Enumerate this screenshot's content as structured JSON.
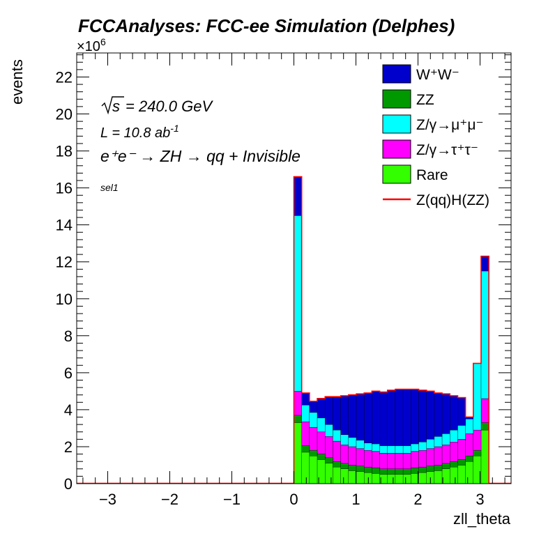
{
  "chart_data": {
    "type": "bar",
    "title": "FCCAnalyses: FCC-ee Simulation (Delphes)",
    "xlabel": "zll_theta",
    "ylabel": "events",
    "y_multiplier": "×10",
    "y_multiplier_exp": "6",
    "xlim": [
      -3.5,
      3.5
    ],
    "ylim": [
      0,
      23.3
    ],
    "x_ticks": [
      "−3",
      "−2",
      "−1",
      "0",
      "1",
      "2",
      "3"
    ],
    "y_ticks": [
      "0",
      "2",
      "4",
      "6",
      "8",
      "10",
      "12",
      "14",
      "16",
      "18",
      "20",
      "22"
    ],
    "stacked": true,
    "annotations": {
      "sqrt_s": "s",
      "energy": "= 240.0 GeV",
      "lumi": "L = 10.8 ab",
      "lumi_exp": "-1",
      "process": "e⁺e⁻ → ZH → qq + Invisible",
      "selection": "sel1"
    },
    "bins": {
      "lo": 0.0,
      "width": 0.1257,
      "count": 25
    },
    "series": [
      {
        "name": "Rare",
        "color": "#33ff00",
        "values": [
          3.3,
          1.7,
          1.5,
          1.3,
          1.1,
          0.9,
          0.8,
          0.7,
          0.65,
          0.6,
          0.55,
          0.5,
          0.5,
          0.5,
          0.5,
          0.55,
          0.6,
          0.65,
          0.7,
          0.8,
          0.9,
          1.0,
          1.2,
          1.5,
          2.9
        ]
      },
      {
        "name": "ZZ",
        "color": "#009900",
        "values": [
          0.4,
          0.35,
          0.3,
          0.3,
          0.3,
          0.3,
          0.3,
          0.3,
          0.3,
          0.3,
          0.3,
          0.3,
          0.3,
          0.3,
          0.3,
          0.3,
          0.3,
          0.3,
          0.3,
          0.3,
          0.3,
          0.3,
          0.3,
          0.3,
          0.4
        ]
      },
      {
        "name": "Z/γ→τ⁺τ⁻",
        "color": "#ff00ff",
        "values": [
          1.3,
          1.3,
          1.25,
          1.2,
          1.15,
          1.1,
          1.0,
          1.0,
          0.95,
          0.9,
          0.9,
          0.85,
          0.85,
          0.85,
          0.85,
          0.9,
          0.9,
          0.95,
          1.0,
          1.0,
          1.05,
          1.1,
          1.2,
          1.1,
          1.3
        ]
      },
      {
        "name": "Z/γ→μ⁺μ⁻",
        "color": "#00ffff",
        "values": [
          9.5,
          0.9,
          0.8,
          0.75,
          0.65,
          0.6,
          0.55,
          0.5,
          0.45,
          0.4,
          0.4,
          0.4,
          0.4,
          0.4,
          0.4,
          0.4,
          0.45,
          0.5,
          0.55,
          0.6,
          0.65,
          0.75,
          0.8,
          3.6,
          6.9
        ]
      },
      {
        "name": "W⁺W⁻",
        "color": "#0000cc",
        "values": [
          2.1,
          0.65,
          0.6,
          1.05,
          1.5,
          1.8,
          2.1,
          2.3,
          2.5,
          2.7,
          2.85,
          2.9,
          3.0,
          3.05,
          3.05,
          2.95,
          2.8,
          2.6,
          2.35,
          2.15,
          1.85,
          1.5,
          0.1,
          0.0,
          0.8
        ]
      },
      {
        "name": "Z(qq)H(ZZ)",
        "color": "#ff0000",
        "values": [
          0.005,
          0.005,
          0.005,
          0.005,
          0.005,
          0.005,
          0.005,
          0.005,
          0.005,
          0.005,
          0.005,
          0.005,
          0.005,
          0.005,
          0.005,
          0.005,
          0.005,
          0.005,
          0.005,
          0.005,
          0.005,
          0.005,
          0.005,
          0.005,
          0.005
        ]
      }
    ],
    "legend": {
      "placement": "top-right",
      "entries": [
        {
          "label": "W⁺W⁻",
          "color": "#0000cc",
          "style": "box"
        },
        {
          "label": "ZZ",
          "color": "#009900",
          "style": "box"
        },
        {
          "label": "Z/γ→μ⁺μ⁻",
          "color": "#00ffff",
          "style": "box"
        },
        {
          "label": "Z/γ→τ⁺τ⁻",
          "color": "#ff00ff",
          "style": "box"
        },
        {
          "label": "Rare",
          "color": "#33ff00",
          "style": "box"
        },
        {
          "label": "Z(qq)H(ZZ)",
          "color": "#ff0000",
          "style": "line"
        }
      ]
    }
  }
}
